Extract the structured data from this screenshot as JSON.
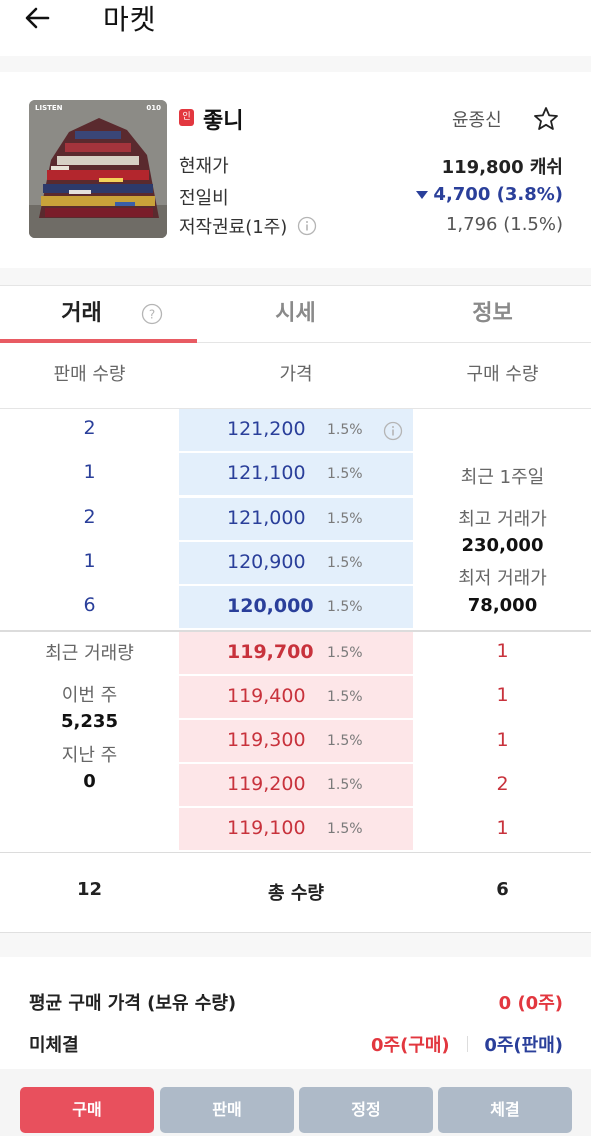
{
  "header": {
    "title": "마켓",
    "back_icon": "arrow-left-icon"
  },
  "song": {
    "cover_label_left": "LISTEN",
    "cover_label_right": "010",
    "badge": "인",
    "title": "좋니",
    "artist": "윤종신",
    "star_icon": "star-outline-icon",
    "current_price_label": "현재가",
    "current_price": "119,800 캐쉬",
    "change_label": "전일비",
    "change": "4,700 (3.8%)",
    "royalty_label": "저작권료(1주)",
    "royalty": "1,796 (1.5%)"
  },
  "tabs": [
    {
      "label": "거래",
      "active": true
    },
    {
      "label": "시세",
      "active": false
    },
    {
      "label": "정보",
      "active": false
    }
  ],
  "columns": {
    "sell_qty": "판매 수량",
    "price": "가격",
    "buy_qty": "구매 수량"
  },
  "sell_orders": [
    {
      "qty": "2",
      "price": "121,200",
      "pct": "1.5%"
    },
    {
      "qty": "1",
      "price": "121,100",
      "pct": "1.5%"
    },
    {
      "qty": "2",
      "price": "121,000",
      "pct": "1.5%"
    },
    {
      "qty": "1",
      "price": "120,900",
      "pct": "1.5%"
    },
    {
      "qty": "6",
      "price": "120,000",
      "pct": "1.5%"
    }
  ],
  "buy_orders": [
    {
      "qty": "1",
      "price": "119,700",
      "pct": "1.5%"
    },
    {
      "qty": "1",
      "price": "119,400",
      "pct": "1.5%"
    },
    {
      "qty": "1",
      "price": "119,300",
      "pct": "1.5%"
    },
    {
      "qty": "2",
      "price": "119,200",
      "pct": "1.5%"
    },
    {
      "qty": "1",
      "price": "119,100",
      "pct": "1.5%"
    }
  ],
  "week_stats": {
    "period": "최근 1주일",
    "high_label": "최고 거래가",
    "high": "230,000",
    "low_label": "최저 거래가",
    "low": "78,000"
  },
  "volume": {
    "title": "최근 거래량",
    "this_week_label": "이번 주",
    "this_week": "5,235",
    "last_week_label": "지난 주",
    "last_week": "0"
  },
  "totals": {
    "sell": "12",
    "label": "총 수량",
    "buy": "6"
  },
  "summary": {
    "avg_label": "평균 구매 가격 (보유 수량)",
    "avg_value": "0 (0주)",
    "pending_label": "미체결",
    "pending_buy": "0주(구매)",
    "pending_sell": "0주(판매)"
  },
  "buttons": {
    "buy": "구매",
    "sell": "판매",
    "edit": "정정",
    "done": "체결"
  },
  "colors": {
    "accent_red": "#e2373f",
    "navy": "#2a3f9a",
    "sell_bg": "#e3effb",
    "buy_bg": "#fde6e8"
  }
}
